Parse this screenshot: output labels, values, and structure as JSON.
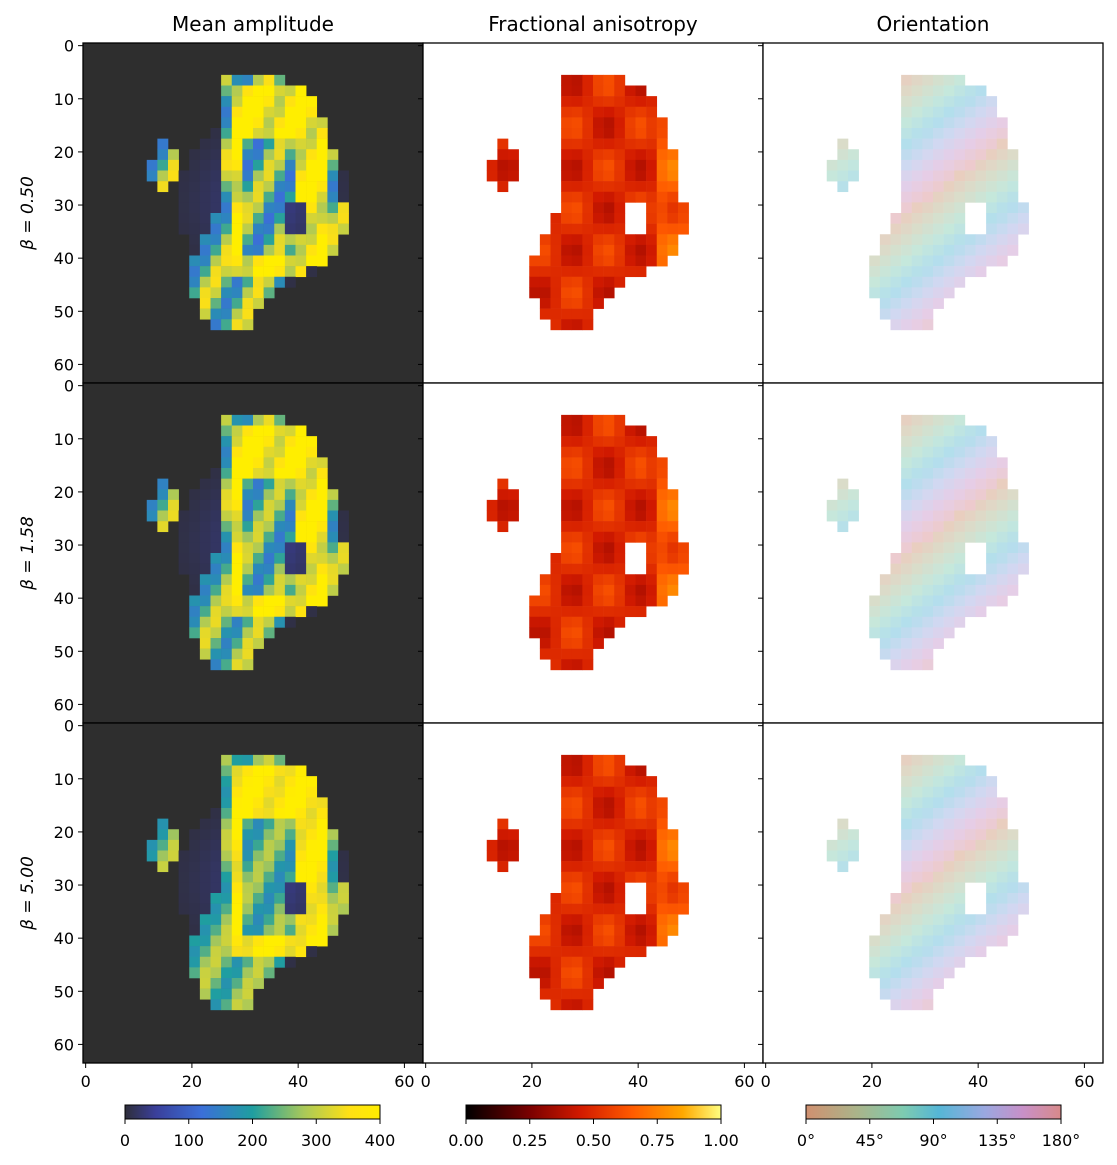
{
  "chart_data": {
    "type": "heatmap",
    "grid_shape": [
      64,
      64
    ],
    "columns": [
      {
        "title": "Mean amplitude",
        "colormap": "plasma-like (dark blue → blue → teal → yellow)",
        "background": "#2e2e2e",
        "colorbar": {
          "min": 0,
          "max": 400,
          "ticks": [
            "0",
            "100",
            "200",
            "300",
            "400"
          ]
        }
      },
      {
        "title": "Fractional anisotropy",
        "colormap": "hot",
        "background": "#ffffff",
        "colorbar": {
          "min": 0,
          "max": 1,
          "ticks": [
            "0.00",
            "0.25",
            "0.50",
            "0.75",
            "1.00"
          ]
        }
      },
      {
        "title": "Orientation",
        "colormap": "cyclic pastel",
        "background": "#ffffff",
        "colorbar": {
          "min": 0,
          "max": 180,
          "ticks": [
            "0°",
            "45°",
            "90°",
            "135°",
            "180°"
          ]
        }
      }
    ],
    "rows": [
      {
        "label": "β = 0.50",
        "beta": 0.5
      },
      {
        "label": "β = 1.58",
        "beta": 1.58
      },
      {
        "label": "β = 5.00",
        "beta": 5.0
      }
    ],
    "x_ticks": [
      0,
      20,
      40,
      60
    ],
    "y_ticks": [
      0,
      10,
      20,
      30,
      40,
      50,
      60
    ],
    "xlim": [
      0,
      63
    ],
    "ylim": [
      63,
      0
    ]
  },
  "colors": {
    "amp_background": "#2e2e2e",
    "amp_stops": [
      "#2e2e3a",
      "#3a3f9a",
      "#3b6fd8",
      "#1f9ea0",
      "#a8c85a",
      "#ffe014",
      "#ffee00"
    ],
    "fa_stops": [
      "#000000",
      "#7a0000",
      "#d21a00",
      "#ff5a00",
      "#ffa800",
      "#ffff80"
    ],
    "ori_stops": [
      "#d09070",
      "#aab48a",
      "#7ecbb0",
      "#55b6d6",
      "#9aa8e0",
      "#c890c8",
      "#d88a8a"
    ]
  }
}
